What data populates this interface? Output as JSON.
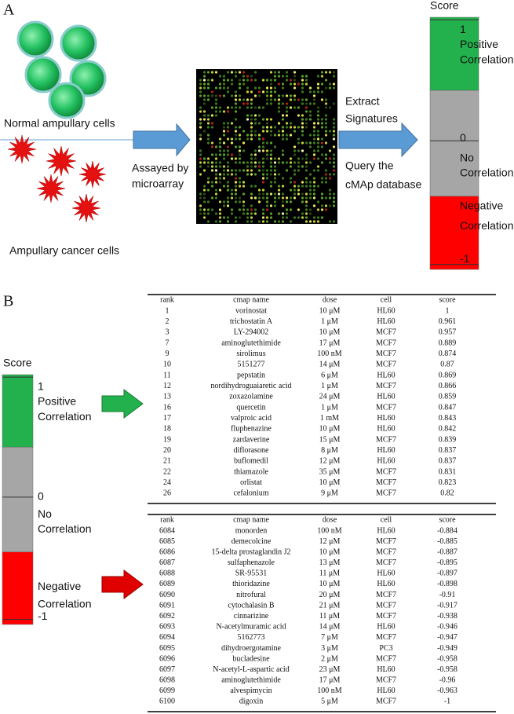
{
  "panel_a": {
    "label": "A",
    "normal_cells": "Normal ampullary cells",
    "cancer_cells": "Ampullary cancer cells",
    "assay": [
      "Assayed by",
      "microarray"
    ],
    "extract": [
      "Extract",
      "Signatures"
    ],
    "query": [
      "Query the",
      "cMAp database"
    ]
  },
  "panel_b": {
    "label": "B"
  },
  "score_scale": {
    "title": "Score",
    "max": "1",
    "positive": [
      "Positive",
      "Correlation"
    ],
    "zero": "0",
    "none": [
      "No",
      "Correlation"
    ],
    "negative": [
      "Negative",
      "Correlation"
    ],
    "min": "-1"
  },
  "tables": [
    {
      "columns": [
        "rank",
        "cmap name",
        "dose",
        "cell",
        "score"
      ],
      "rows": [
        [
          "1",
          "vorinostat",
          "10 μM",
          "HL60",
          "1"
        ],
        [
          "2",
          "trichostatin A",
          "1 μM",
          "HL60",
          "0.961"
        ],
        [
          "3",
          "LY-294002",
          "10 μM",
          "MCF7",
          "0.957"
        ],
        [
          "7",
          "aminoglutethimide",
          "17 μM",
          "MCF7",
          "0.889"
        ],
        [
          "9",
          "sirolimus",
          "100 nM",
          "MCF7",
          "0.874"
        ],
        [
          "10",
          "5151277",
          "14 μM",
          "MCF7",
          "0.87"
        ],
        [
          "11",
          "pepstatin",
          "6 μM",
          "HL60",
          "0.869"
        ],
        [
          "12",
          "nordihydroguaiaretic acid",
          "1 μM",
          "MCF7",
          "0.866"
        ],
        [
          "13",
          "zoxazolamine",
          "24 μM",
          "HL60",
          "0.859"
        ],
        [
          "16",
          "quercetin",
          "1 μM",
          "MCF7",
          "0.847"
        ],
        [
          "17",
          "valproic acid",
          "1 mM",
          "HL60",
          "0.843"
        ],
        [
          "18",
          "fluphenazine",
          "10 μM",
          "HL60",
          "0.842"
        ],
        [
          "19",
          "zardaverine",
          "15 μM",
          "MCF7",
          "0.839"
        ],
        [
          "20",
          "diflorasone",
          "8 μM",
          "HL60",
          "0.837"
        ],
        [
          "21",
          "buflomedil",
          "12 μM",
          "HL60",
          "0.837"
        ],
        [
          "22",
          "thiamazole",
          "35 μM",
          "MCF7",
          "0.831"
        ],
        [
          "24",
          "orlistat",
          "10 μM",
          "MCF7",
          "0.823"
        ],
        [
          "26",
          "cefalonium",
          "9 μM",
          "MCF7",
          "0.82"
        ]
      ]
    },
    {
      "columns": [
        "rank",
        "cmap name",
        "dose",
        "cell",
        "score"
      ],
      "rows": [
        [
          "6084",
          "monorden",
          "100 nM",
          "HL60",
          "-0.884"
        ],
        [
          "6085",
          "demecolcine",
          "12 μM",
          "MCF7",
          "-0.885"
        ],
        [
          "6086",
          "15-delta prostaglandin J2",
          "10 μM",
          "MCF7",
          "-0.887"
        ],
        [
          "6087",
          "sulfaphenazole",
          "13 μM",
          "MCF7",
          "-0.895"
        ],
        [
          "6088",
          "SR-95531",
          "11 μM",
          "HL60",
          "-0.897"
        ],
        [
          "6089",
          "thioridazine",
          "10 μM",
          "HL60",
          "-0.898"
        ],
        [
          "6090",
          "nitrofural",
          "20 μM",
          "MCF7",
          "-0.91"
        ],
        [
          "6091",
          "cytochalasin B",
          "21 μM",
          "MCF7",
          "-0.917"
        ],
        [
          "6092",
          "cinnarizine",
          "11 μM",
          "MCF7",
          "-0.938"
        ],
        [
          "6093",
          "N-acetylmuramic acid",
          "14 μM",
          "HL60",
          "-0.946"
        ],
        [
          "6094",
          "5162773",
          "7 μM",
          "MCF7",
          "-0.947"
        ],
        [
          "6095",
          "dihydroergotamine",
          "3 μM",
          "PC3",
          "-0.949"
        ],
        [
          "6096",
          "bucladesine",
          "2 μM",
          "MCF7",
          "-0.958"
        ],
        [
          "6097",
          "N-acetyl-L-aspartic acid",
          "23 μM",
          "HL60",
          "-0.958"
        ],
        [
          "6098",
          "aminoglutethimide",
          "17 μM",
          "MCF7",
          "-0.96"
        ],
        [
          "6099",
          "alvespimycin",
          "100 nM",
          "HL60",
          "-0.963"
        ],
        [
          "6100",
          "digoxin",
          "5 μM",
          "MCF7",
          "-1"
        ]
      ]
    }
  ]
}
